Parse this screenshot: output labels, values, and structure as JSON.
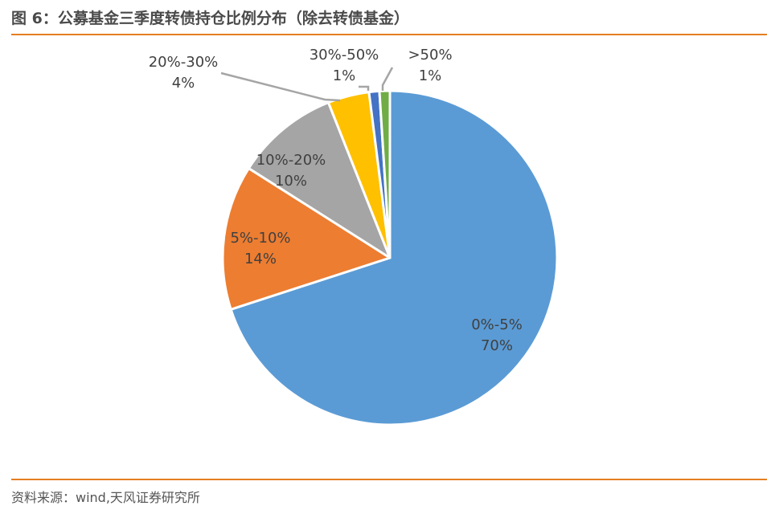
{
  "header": {
    "title": "图 6：公募基金三季度转债持仓比例分布（除去转债基金）"
  },
  "footer": {
    "source": "资料来源：wind,天风证券研究所"
  },
  "chart_data": {
    "type": "pie",
    "start_angle_deg": 0,
    "direction": "clockwise",
    "slices": [
      {
        "label": "0%-5%",
        "value": 70,
        "value_label": "70%",
        "color": "#5b9bd5"
      },
      {
        "label": "5%-10%",
        "value": 14,
        "value_label": "14%",
        "color": "#ed7d31"
      },
      {
        "label": "10%-20%",
        "value": 10,
        "value_label": "10%",
        "color": "#a5a5a5"
      },
      {
        "label": "20%-30%",
        "value": 4,
        "value_label": "4%",
        "color": "#ffc000"
      },
      {
        "label": "30%-50%",
        "value": 1,
        "value_label": "1%",
        "color": "#4472c4"
      },
      {
        "label": ">50%",
        "value": 1,
        "value_label": "1%",
        "color": "#70ad47"
      }
    ],
    "legend": "none",
    "label_color": "#404040"
  }
}
